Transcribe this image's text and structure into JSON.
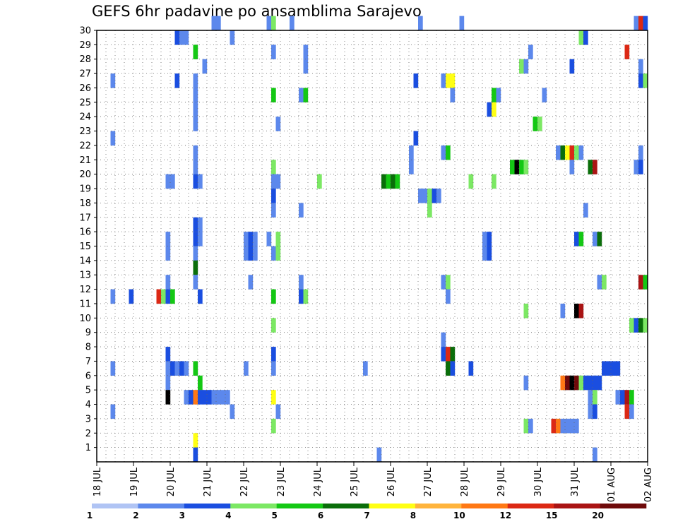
{
  "chart_data": {
    "type": "heatmap",
    "title": "GEFS 6hr padavine po ansamblima Sarajevo",
    "x_tick_labels": [
      "18 JUL",
      "19 JUL",
      "20 JUL",
      "21 JUL",
      "22 JUL",
      "23 JUL",
      "24 JUL",
      "25 JUL",
      "26 JUL",
      "27 JUL",
      "28 JUL",
      "29 JUL",
      "30 JUL",
      "31 JUL",
      "01 AUG",
      "02 AUG"
    ],
    "y_tick_labels": [
      "1",
      "2",
      "3",
      "4",
      "5",
      "6",
      "7",
      "8",
      "9",
      "10",
      "11",
      "12",
      "13",
      "14",
      "15",
      "16",
      "17",
      "18",
      "19",
      "20",
      "21",
      "22",
      "23",
      "24",
      "25",
      "26",
      "27",
      "28",
      "29",
      "30"
    ],
    "x_range": [
      "18 JUL 00h",
      "02 AUG 00h"
    ],
    "y_range": [
      0,
      30
    ],
    "time_step_hours": 6,
    "grid": "dotted",
    "legend": {
      "placement": "bottom",
      "labels": [
        "1",
        "2",
        "3",
        "4",
        "5",
        "6",
        "7",
        "8",
        "10",
        "12",
        "15",
        "20"
      ],
      "colors": [
        "#b0c4f4",
        "#5c88ec",
        "#1a4ee0",
        "#7ce864",
        "#14c814",
        "#0a6e0a",
        "#ffff14",
        "#ffb43c",
        "#ff7814",
        "#dc2814",
        "#aa1414",
        "#6e0a0a"
      ]
    },
    "cells": [
      [
        30,
        25,
        1
      ],
      [
        30,
        26,
        1
      ],
      [
        30,
        37,
        1
      ],
      [
        30,
        38,
        3
      ],
      [
        30,
        42,
        1
      ],
      [
        30,
        70,
        1
      ],
      [
        30,
        79,
        1
      ],
      [
        30,
        117,
        1
      ],
      [
        30,
        118,
        9
      ],
      [
        30,
        119,
        2
      ],
      [
        29,
        17,
        2
      ],
      [
        29,
        18,
        1
      ],
      [
        29,
        19,
        1
      ],
      [
        29,
        29,
        1
      ],
      [
        29,
        105,
        3
      ],
      [
        29,
        106,
        2
      ],
      [
        28,
        21,
        4
      ],
      [
        28,
        38,
        1
      ],
      [
        28,
        45,
        1
      ],
      [
        28,
        94,
        1
      ],
      [
        28,
        115,
        9
      ],
      [
        27,
        23,
        1
      ],
      [
        27,
        45,
        1
      ],
      [
        27,
        92,
        3
      ],
      [
        27,
        93,
        1
      ],
      [
        27,
        103,
        2
      ],
      [
        27,
        118,
        1
      ],
      [
        26,
        3,
        1
      ],
      [
        26,
        17,
        2
      ],
      [
        26,
        21,
        1
      ],
      [
        26,
        69,
        2
      ],
      [
        26,
        75,
        1
      ],
      [
        26,
        76,
        6
      ],
      [
        26,
        77,
        6
      ],
      [
        26,
        118,
        2
      ],
      [
        26,
        119,
        3
      ],
      [
        25,
        21,
        1
      ],
      [
        25,
        38,
        4
      ],
      [
        25,
        44,
        1
      ],
      [
        25,
        45,
        4
      ],
      [
        25,
        77,
        1
      ],
      [
        25,
        86,
        4
      ],
      [
        25,
        87,
        1
      ],
      [
        25,
        97,
        1
      ],
      [
        24,
        21,
        1
      ],
      [
        24,
        85,
        2
      ],
      [
        24,
        86,
        6
      ],
      [
        23,
        21,
        1
      ],
      [
        23,
        39,
        1
      ],
      [
        23,
        95,
        4
      ],
      [
        23,
        96,
        3
      ],
      [
        22,
        3,
        1
      ],
      [
        22,
        69,
        2
      ],
      [
        21,
        21,
        1
      ],
      [
        21,
        68,
        1
      ],
      [
        21,
        75,
        1
      ],
      [
        21,
        76,
        4
      ],
      [
        21,
        100,
        1
      ],
      [
        21,
        101,
        5
      ],
      [
        21,
        102,
        6
      ],
      [
        21,
        103,
        9
      ],
      [
        21,
        104,
        3
      ],
      [
        21,
        105,
        1
      ],
      [
        21,
        118,
        1
      ],
      [
        20,
        21,
        1
      ],
      [
        20,
        38,
        3
      ],
      [
        20,
        68,
        1
      ],
      [
        20,
        90,
        4
      ],
      [
        20,
        91,
        12
      ],
      [
        20,
        92,
        4
      ],
      [
        20,
        93,
        3
      ],
      [
        20,
        103,
        1
      ],
      [
        20,
        107,
        5
      ],
      [
        20,
        108,
        10
      ],
      [
        20,
        117,
        1
      ],
      [
        20,
        118,
        2
      ],
      [
        19,
        15,
        1
      ],
      [
        19,
        16,
        1
      ],
      [
        19,
        21,
        2
      ],
      [
        19,
        22,
        1
      ],
      [
        19,
        38,
        1
      ],
      [
        19,
        39,
        1
      ],
      [
        19,
        48,
        3
      ],
      [
        19,
        62,
        5
      ],
      [
        19,
        63,
        4
      ],
      [
        19,
        64,
        5
      ],
      [
        19,
        65,
        4
      ],
      [
        19,
        81,
        3
      ],
      [
        19,
        86,
        3
      ],
      [
        18,
        38,
        2
      ],
      [
        18,
        70,
        1
      ],
      [
        18,
        71,
        1
      ],
      [
        18,
        72,
        3
      ],
      [
        18,
        73,
        2
      ],
      [
        18,
        74,
        1
      ],
      [
        17,
        38,
        1
      ],
      [
        17,
        44,
        1
      ],
      [
        17,
        72,
        3
      ],
      [
        17,
        106,
        1
      ],
      [
        16,
        21,
        2
      ],
      [
        16,
        22,
        1
      ],
      [
        15,
        15,
        1
      ],
      [
        15,
        21,
        2
      ],
      [
        15,
        22,
        1
      ],
      [
        15,
        32,
        1
      ],
      [
        15,
        33,
        2
      ],
      [
        15,
        34,
        1
      ],
      [
        15,
        37,
        1
      ],
      [
        15,
        39,
        3
      ],
      [
        15,
        84,
        1
      ],
      [
        15,
        85,
        2
      ],
      [
        15,
        104,
        2
      ],
      [
        15,
        105,
        4
      ],
      [
        15,
        108,
        1
      ],
      [
        15,
        109,
        5
      ],
      [
        14,
        15,
        1
      ],
      [
        14,
        21,
        1
      ],
      [
        14,
        32,
        1
      ],
      [
        14,
        33,
        2
      ],
      [
        14,
        34,
        1
      ],
      [
        14,
        38,
        1
      ],
      [
        14,
        39,
        3
      ],
      [
        14,
        84,
        1
      ],
      [
        14,
        85,
        2
      ],
      [
        13,
        21,
        5
      ],
      [
        12,
        15,
        1
      ],
      [
        12,
        21,
        1
      ],
      [
        12,
        33,
        1
      ],
      [
        12,
        44,
        1
      ],
      [
        12,
        75,
        1
      ],
      [
        12,
        76,
        3
      ],
      [
        12,
        109,
        1
      ],
      [
        12,
        110,
        3
      ],
      [
        12,
        118,
        10
      ],
      [
        12,
        119,
        4
      ],
      [
        11,
        3,
        1
      ],
      [
        11,
        7,
        2
      ],
      [
        11,
        13,
        9
      ],
      [
        11,
        14,
        3
      ],
      [
        11,
        15,
        2
      ],
      [
        11,
        16,
        4
      ],
      [
        11,
        22,
        2
      ],
      [
        11,
        38,
        4
      ],
      [
        11,
        44,
        2
      ],
      [
        11,
        45,
        3
      ],
      [
        11,
        76,
        1
      ],
      [
        10,
        93,
        3
      ],
      [
        10,
        101,
        1
      ],
      [
        10,
        104,
        13
      ],
      [
        10,
        105,
        10
      ],
      [
        9,
        38,
        3
      ],
      [
        9,
        116,
        3
      ],
      [
        9,
        117,
        2
      ],
      [
        9,
        118,
        5
      ],
      [
        9,
        119,
        3
      ],
      [
        8,
        75,
        1
      ],
      [
        7,
        15,
        2
      ],
      [
        7,
        38,
        2
      ],
      [
        7,
        75,
        2
      ],
      [
        7,
        76,
        9
      ],
      [
        7,
        77,
        5
      ],
      [
        6,
        3,
        1
      ],
      [
        6,
        15,
        1
      ],
      [
        6,
        16,
        2
      ],
      [
        6,
        17,
        1
      ],
      [
        6,
        18,
        2
      ],
      [
        6,
        19,
        1
      ],
      [
        6,
        21,
        4
      ],
      [
        6,
        32,
        1
      ],
      [
        6,
        38,
        1
      ],
      [
        6,
        58,
        1
      ],
      [
        6,
        76,
        5
      ],
      [
        6,
        77,
        2
      ],
      [
        6,
        81,
        2
      ],
      [
        6,
        110,
        2
      ],
      [
        6,
        111,
        2
      ],
      [
        6,
        112,
        2
      ],
      [
        6,
        113,
        2
      ],
      [
        5,
        15,
        1
      ],
      [
        5,
        22,
        4
      ],
      [
        5,
        93,
        1
      ],
      [
        5,
        101,
        8
      ],
      [
        5,
        102,
        11
      ],
      [
        5,
        103,
        14
      ],
      [
        5,
        104,
        11
      ],
      [
        5,
        105,
        3
      ],
      [
        5,
        106,
        2
      ],
      [
        5,
        107,
        2
      ],
      [
        5,
        108,
        2
      ],
      [
        5,
        109,
        2
      ],
      [
        4,
        15,
        13
      ],
      [
        4,
        19,
        1
      ],
      [
        4,
        20,
        2
      ],
      [
        4,
        21,
        8
      ],
      [
        4,
        22,
        2
      ],
      [
        4,
        23,
        2
      ],
      [
        4,
        24,
        2
      ],
      [
        4,
        25,
        1
      ],
      [
        4,
        26,
        1
      ],
      [
        4,
        27,
        1
      ],
      [
        4,
        28,
        1
      ],
      [
        4,
        38,
        6
      ],
      [
        4,
        107,
        1
      ],
      [
        4,
        108,
        3
      ],
      [
        4,
        113,
        1
      ],
      [
        4,
        114,
        2
      ],
      [
        4,
        115,
        10
      ],
      [
        4,
        116,
        4
      ],
      [
        3,
        3,
        1
      ],
      [
        3,
        29,
        1
      ],
      [
        3,
        39,
        1
      ],
      [
        3,
        107,
        1
      ],
      [
        3,
        108,
        2
      ],
      [
        3,
        115,
        9
      ],
      [
        3,
        116,
        1
      ],
      [
        2,
        38,
        3
      ],
      [
        2,
        93,
        3
      ],
      [
        2,
        94,
        1
      ],
      [
        2,
        99,
        9
      ],
      [
        2,
        100,
        8
      ],
      [
        2,
        101,
        1
      ],
      [
        2,
        102,
        1
      ],
      [
        2,
        103,
        1
      ],
      [
        2,
        104,
        1
      ],
      [
        1,
        21,
        6
      ],
      [
        0,
        21,
        2
      ],
      [
        0,
        61,
        1
      ],
      [
        0,
        108,
        1
      ]
    ]
  }
}
